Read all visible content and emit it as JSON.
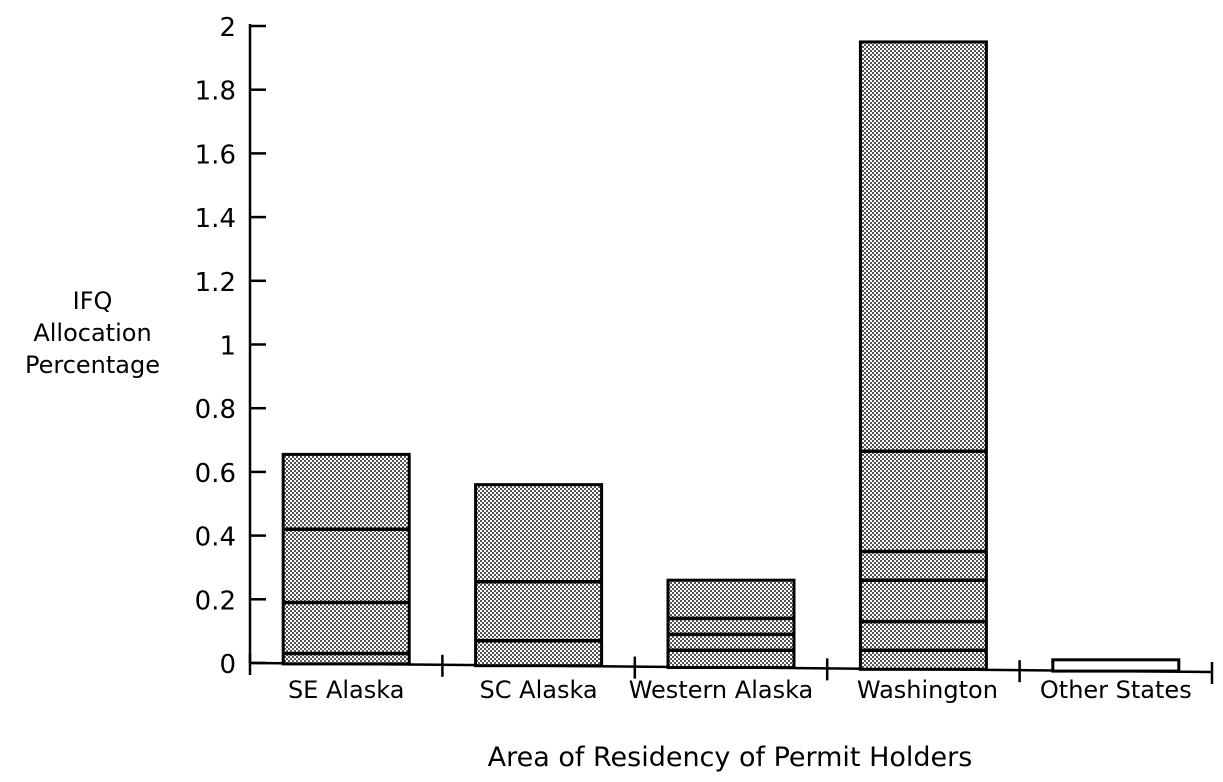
{
  "chart_data": {
    "type": "bar",
    "stacked": true,
    "ylabel_lines": [
      "IFQ",
      "Allocation",
      "Percentage"
    ],
    "xlabel": "Area of Residency of Permit Holders",
    "categories": [
      "SE Alaska",
      "SC Alaska",
      "Western Alaska",
      "Washington",
      "Other States"
    ],
    "segment_boundaries": [
      [
        0.03,
        0.19,
        0.42,
        0.655
      ],
      [
        0.07,
        0.255,
        0.56
      ],
      [
        0.04,
        0.09,
        0.14,
        0.26
      ],
      [
        0.04,
        0.13,
        0.26,
        0.35,
        0.665,
        1.95
      ],
      [
        0.01
      ]
    ],
    "bar_totals": [
      0.655,
      0.56,
      0.26,
      1.95,
      0.01
    ],
    "ylim": [
      0,
      2
    ],
    "yticks": [
      "0",
      "0.2",
      "0.4",
      "0.6",
      "0.8",
      "1",
      "1.2",
      "1.4",
      "1.6",
      "1.8",
      "2"
    ],
    "grid": false,
    "legend": "none",
    "colors": {
      "bar_fill": "#b8b8b8",
      "outline": "#000000",
      "empty_fill": "#ffffff"
    }
  }
}
